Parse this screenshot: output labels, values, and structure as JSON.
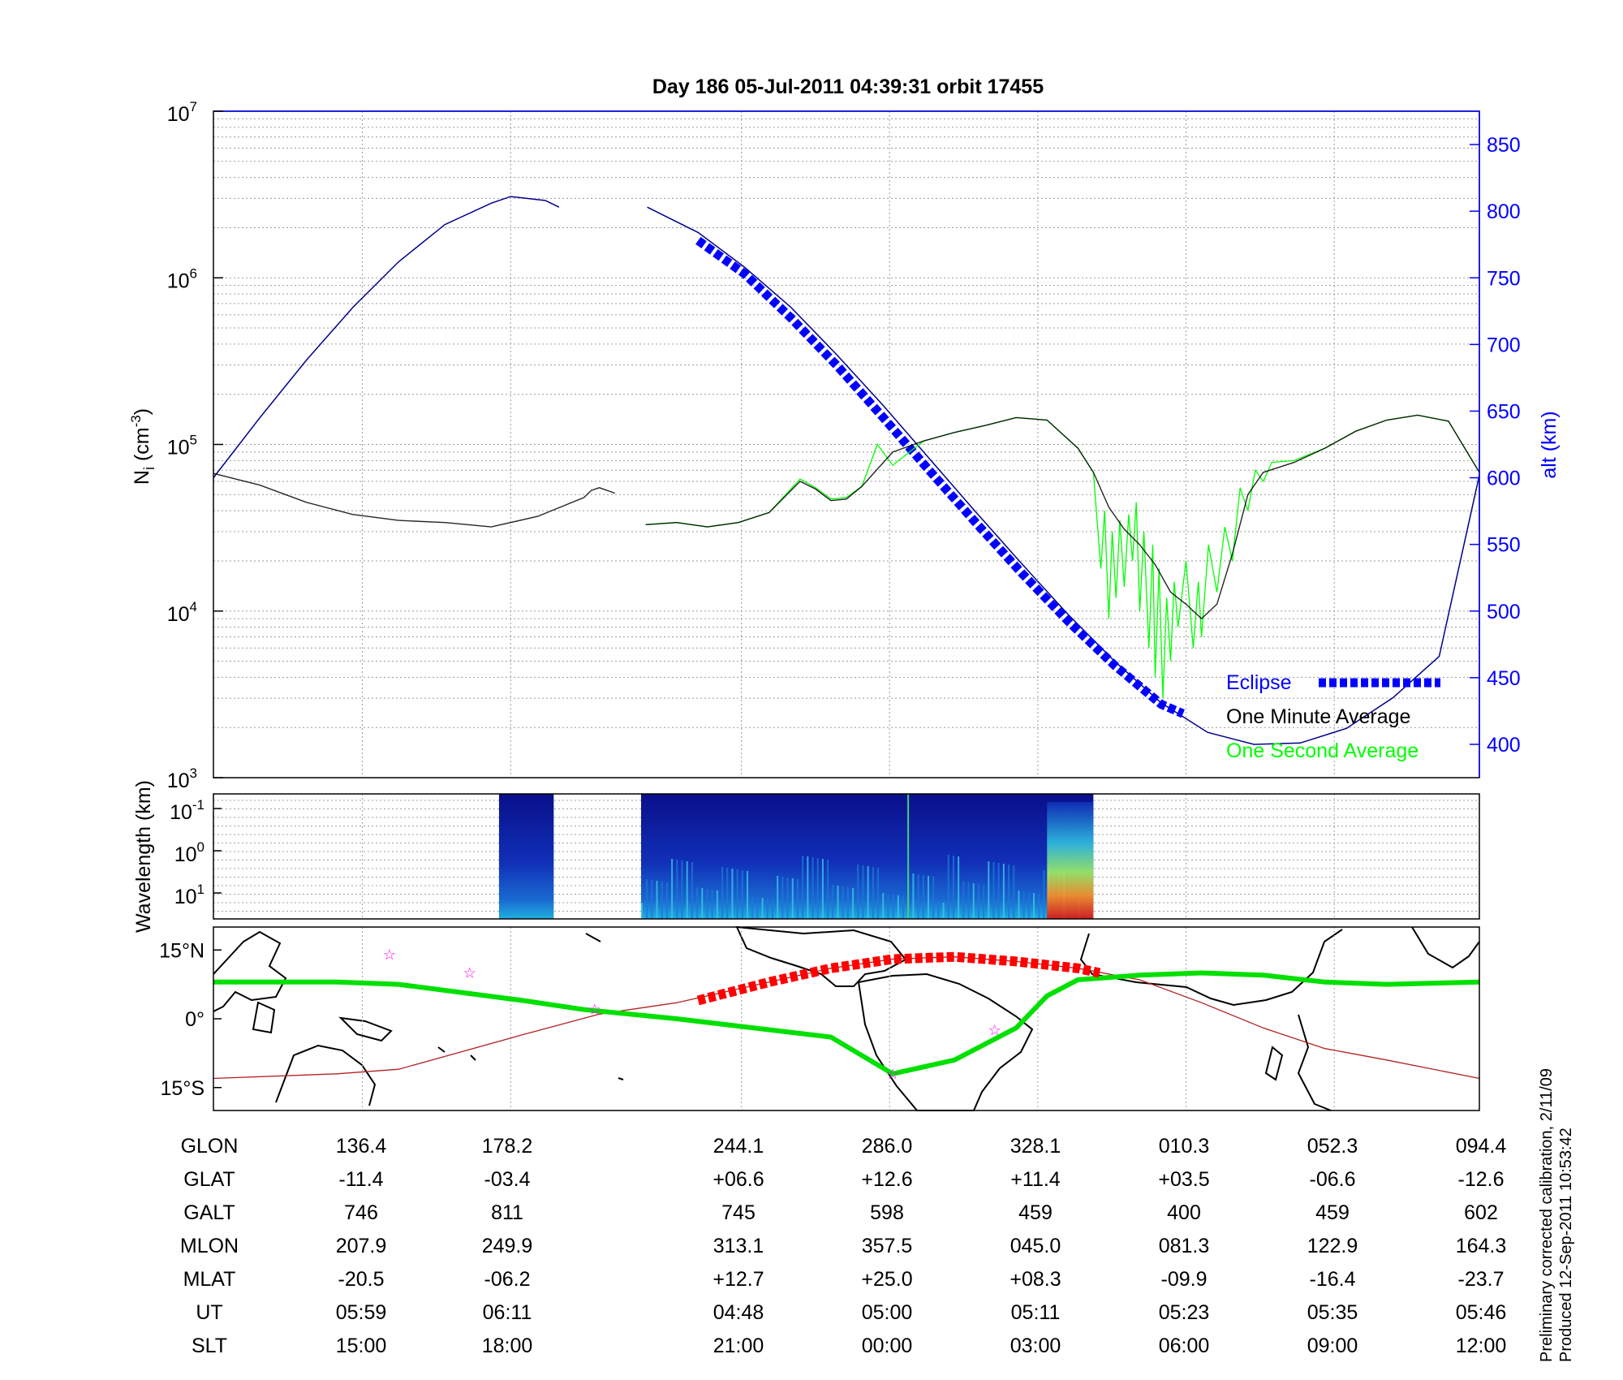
{
  "title": "Day 186  05-Jul-2011 04:39:31   orbit 17455",
  "colors": {
    "eclipse": "#0000ff",
    "one_minute": "#000000",
    "one_second": "#00ff00",
    "altitude": "#00008b",
    "track": "#00e000",
    "eclipse_track": "#ff0000",
    "orbit_path": "#b22222",
    "stars": "#ff00ff",
    "axis_right": "#0000ff"
  },
  "chart_data": [
    {
      "id": "density",
      "type": "line",
      "ylabel": "N_i (cm^-3)",
      "ylabel_main": "N",
      "ylabel_sub": "i",
      "ylabel_unit_open": " (cm",
      "ylabel_unit_sup": "-3",
      "ylabel_unit_close": ")",
      "yscale": "log",
      "ylim": [
        1000,
        10000000
      ],
      "y_ticks": [
        {
          "base": "10",
          "exp": "3",
          "value": 1000
        },
        {
          "base": "10",
          "exp": "4",
          "value": 10000
        },
        {
          "base": "10",
          "exp": "5",
          "value": 100000
        },
        {
          "base": "10",
          "exp": "6",
          "value": 1000000
        },
        {
          "base": "10",
          "exp": "7",
          "value": 10000000
        }
      ],
      "y2label": "alt (km)",
      "y2lim": [
        375,
        875
      ],
      "y2_ticks": [
        "400",
        "450",
        "500",
        "550",
        "600",
        "650",
        "700",
        "750",
        "800",
        "850"
      ],
      "xlim": [
        0,
        1
      ],
      "legend": {
        "placement": "bottom-right",
        "entries": [
          "Eclipse",
          "One Minute Average",
          "One Second Average"
        ]
      },
      "series": [
        {
          "name": "altitude (km)",
          "axis": "right",
          "points": [
            [
              0.0,
              600
            ],
            [
              0.0366,
              645
            ],
            [
              0.0732,
              688
            ],
            [
              0.1103,
              728
            ],
            [
              0.1463,
              762
            ],
            [
              0.1829,
              790
            ],
            [
              0.2195,
              806
            ],
            [
              0.2348,
              811
            ],
            [
              0.2622,
              808
            ],
            [
              0.273,
              803
            ],
            null,
            [
              0.3427,
              803
            ],
            [
              0.3829,
              784
            ],
            [
              0.4195,
              758
            ],
            [
              0.4561,
              728
            ],
            [
              0.4927,
              692
            ],
            [
              0.5293,
              654
            ],
            [
              0.5659,
              614
            ],
            [
              0.6025,
              574
            ],
            [
              0.639,
              535
            ],
            [
              0.6756,
              497
            ],
            [
              0.7122,
              462
            ],
            [
              0.7488,
              431
            ],
            [
              0.7854,
              409
            ],
            [
              0.822,
              400
            ],
            [
              0.8585,
              401
            ],
            [
              0.8951,
              412
            ],
            [
              0.9317,
              435
            ],
            [
              0.9683,
              466
            ],
            [
              1.0,
              602
            ]
          ]
        },
        {
          "name": "Eclipse",
          "axis": "right",
          "points": [
            [
              0.3829,
              778
            ],
            [
              0.4195,
              753
            ],
            [
              0.4561,
              720
            ],
            [
              0.4927,
              684
            ],
            [
              0.5293,
              645
            ],
            [
              0.5659,
              605
            ],
            [
              0.6025,
              566
            ],
            [
              0.639,
              528
            ],
            [
              0.6756,
              492
            ],
            [
              0.7122,
              459
            ],
            [
              0.7488,
              430
            ],
            [
              0.7659,
              423
            ]
          ]
        },
        {
          "name": "One Minute Average",
          "axis": "left",
          "points": [
            [
              0.0,
              67000
            ],
            [
              0.0366,
              57000
            ],
            [
              0.0732,
              45000
            ],
            [
              0.1098,
              38000
            ],
            [
              0.1463,
              35000
            ],
            [
              0.1829,
              34000
            ],
            [
              0.2195,
              32000
            ],
            [
              0.2561,
              37000
            ],
            [
              0.2927,
              48000
            ],
            [
              0.2985,
              53000
            ],
            [
              0.3049,
              55000
            ],
            [
              0.3171,
              51000
            ],
            null,
            [
              0.3415,
              33000
            ],
            [
              0.3659,
              34000
            ],
            [
              0.3902,
              32000
            ],
            [
              0.4146,
              34000
            ],
            [
              0.439,
              39000
            ],
            [
              0.4634,
              60000
            ],
            [
              0.4756,
              54000
            ],
            [
              0.4878,
              46000
            ],
            [
              0.5,
              47000
            ],
            [
              0.5122,
              56000
            ],
            [
              0.5366,
              90000
            ],
            [
              0.561,
              105000
            ],
            [
              0.5854,
              118000
            ],
            [
              0.6098,
              130000
            ],
            [
              0.6341,
              145000
            ],
            [
              0.6585,
              140000
            ],
            [
              0.6829,
              95000
            ],
            [
              0.6951,
              68000
            ],
            [
              0.7073,
              42000
            ],
            [
              0.7195,
              31000
            ],
            [
              0.7317,
              25000
            ],
            [
              0.7439,
              19000
            ],
            [
              0.7561,
              13000
            ],
            [
              0.7683,
              11000
            ],
            [
              0.7805,
              9000
            ],
            [
              0.7927,
              11000
            ],
            [
              0.8049,
              22000
            ],
            [
              0.8171,
              50000
            ],
            [
              0.8293,
              68000
            ],
            [
              0.8537,
              78000
            ],
            [
              0.878,
              95000
            ],
            [
              0.9024,
              120000
            ],
            [
              0.9268,
              140000
            ],
            [
              0.9512,
              150000
            ],
            [
              0.9756,
              138000
            ],
            [
              1.0,
              68000
            ]
          ]
        },
        {
          "name": "One Second Average",
          "axis": "left",
          "points": [
            [
              0.3415,
              33000
            ],
            [
              0.3659,
              34000
            ],
            [
              0.3902,
              32000
            ],
            [
              0.4146,
              34000
            ],
            [
              0.439,
              39000
            ],
            [
              0.4634,
              62000
            ],
            [
              0.4756,
              55000
            ],
            [
              0.4878,
              47000
            ],
            [
              0.5,
              48000
            ],
            [
              0.5122,
              56000
            ],
            [
              0.5244,
              100000
            ],
            [
              0.5366,
              75000
            ],
            [
              0.561,
              105000
            ],
            [
              0.5854,
              118000
            ],
            [
              0.6098,
              130000
            ],
            [
              0.6341,
              145000
            ],
            [
              0.6585,
              140000
            ],
            [
              0.6829,
              95000
            ],
            [
              0.6951,
              68000
            ],
            [
              0.698,
              35000
            ],
            [
              0.701,
              18000
            ],
            [
              0.704,
              40000
            ],
            [
              0.7073,
              9000
            ],
            [
              0.71,
              30000
            ],
            [
              0.713,
              12000
            ],
            [
              0.716,
              35000
            ],
            [
              0.7195,
              14000
            ],
            [
              0.723,
              38000
            ],
            [
              0.726,
              20000
            ],
            [
              0.729,
              45000
            ],
            [
              0.7317,
              10000
            ],
            [
              0.735,
              30000
            ],
            [
              0.739,
              6000
            ],
            [
              0.742,
              25000
            ],
            [
              0.7439,
              4000
            ],
            [
              0.747,
              18000
            ],
            [
              0.75,
              3000
            ],
            [
              0.753,
              12000
            ],
            [
              0.7561,
              5000
            ],
            [
              0.759,
              15000
            ],
            [
              0.762,
              8000
            ],
            [
              0.7683,
              20000
            ],
            [
              0.774,
              6000
            ],
            [
              0.778,
              15000
            ],
            [
              0.7805,
              7000
            ],
            [
              0.786,
              25000
            ],
            [
              0.7927,
              13000
            ],
            [
              0.799,
              32000
            ],
            [
              0.8049,
              20000
            ],
            [
              0.811,
              55000
            ],
            [
              0.8171,
              40000
            ],
            [
              0.823,
              70000
            ],
            [
              0.8293,
              60000
            ],
            [
              0.836,
              78000
            ],
            [
              0.8537,
              80000
            ],
            [
              0.878,
              95000
            ],
            [
              0.9024,
              120000
            ],
            [
              0.9268,
              140000
            ],
            [
              0.9512,
              150000
            ],
            [
              0.9756,
              138000
            ],
            [
              1.0,
              68000
            ]
          ]
        }
      ]
    },
    {
      "id": "spectrogram",
      "type": "heatmap",
      "ylabel": "Wavelength (km)",
      "yscale": "log",
      "y_ticks": [
        {
          "base": "10",
          "exp": "-1"
        },
        {
          "base": "10",
          "exp": "0"
        },
        {
          "base": "10",
          "exp": "1"
        }
      ],
      "data_segments": [
        [
          0.2256,
          0.2688
        ],
        [
          0.3378,
          0.6951
        ]
      ],
      "intense_region": [
        0.6585,
        0.6951
      ]
    },
    {
      "id": "track",
      "type": "line",
      "y_ticks": [
        "15°N",
        "0°",
        "15°S"
      ],
      "ylim": [
        -20,
        20
      ],
      "series": [
        {
          "name": "magnetic equator",
          "points": [
            [
              0.0,
              8
            ],
            [
              0.0976,
              8
            ],
            [
              0.1463,
              7.5
            ],
            [
              0.2439,
              4
            ],
            [
              0.2927,
              2
            ],
            [
              0.3659,
              0
            ],
            [
              0.4878,
              -4
            ],
            [
              0.5366,
              -12
            ],
            [
              0.5854,
              -9
            ],
            [
              0.6341,
              -2
            ],
            [
              0.6585,
              5
            ],
            [
              0.6829,
              8.5
            ],
            [
              0.7317,
              9.5
            ],
            [
              0.7805,
              10
            ],
            [
              0.8293,
              9.5
            ],
            [
              0.878,
              8
            ],
            [
              0.9268,
              7.5
            ],
            [
              1.0,
              8
            ]
          ]
        },
        {
          "name": "orbit ground track",
          "points": [
            [
              0.0,
              -13
            ],
            [
              0.0976,
              -12
            ],
            [
              0.1463,
              -11
            ],
            [
              0.2439,
              -3.5
            ],
            [
              0.3049,
              1
            ],
            [
              0.3659,
              3.5
            ],
            [
              0.4878,
              11
            ],
            [
              0.5366,
              13
            ],
            [
              0.5854,
              13.5
            ],
            [
              0.6341,
              12.5
            ],
            [
              0.6829,
              11
            ],
            [
              0.7317,
              8.5
            ],
            [
              0.7805,
              3.5
            ],
            [
              0.8293,
              -2
            ],
            [
              0.878,
              -6.5
            ],
            [
              0.9268,
              -9
            ],
            [
              1.0,
              -13
            ]
          ]
        },
        {
          "name": "eclipse",
          "points": [
            [
              0.3829,
              4
            ],
            [
              0.439,
              8
            ],
            [
              0.4878,
              11
            ],
            [
              0.5366,
              13
            ],
            [
              0.5854,
              13.5
            ],
            [
              0.6341,
              12.5
            ],
            [
              0.6829,
              11
            ],
            [
              0.7,
              10
            ]
          ]
        }
      ],
      "stars": [
        [
          0.139,
          14
        ],
        [
          0.2024,
          10
        ],
        [
          0.3012,
          2
        ],
        [
          0.5366,
          -12
        ],
        [
          0.6171,
          -2.5
        ]
      ]
    }
  ],
  "ephemeris": {
    "rows": [
      {
        "label": "GLON",
        "values": [
          "136.4",
          "178.2",
          "244.1",
          "286.0",
          "328.1",
          "010.3",
          "052.3",
          "094.4"
        ]
      },
      {
        "label": "GLAT",
        "values": [
          "-11.4",
          "-03.4",
          "+06.6",
          "+12.6",
          "+11.4",
          "+03.5",
          "-06.6",
          "-12.6"
        ]
      },
      {
        "label": "GALT",
        "values": [
          "746",
          "811",
          "745",
          "598",
          "459",
          "400",
          "459",
          "602"
        ]
      },
      {
        "label": "MLON",
        "values": [
          "207.9",
          "249.9",
          "313.1",
          "357.5",
          "045.0",
          "081.3",
          "122.9",
          "164.3"
        ]
      },
      {
        "label": "MLAT",
        "values": [
          "-20.5",
          "-06.2",
          "+12.7",
          "+25.0",
          "+08.3",
          "-09.9",
          "-16.4",
          "-23.7"
        ]
      },
      {
        "label": "UT",
        "values": [
          "05:59",
          "06:11",
          "04:48",
          "05:00",
          "05:11",
          "05:23",
          "05:35",
          "05:46"
        ]
      },
      {
        "label": "SLT",
        "values": [
          "15:00",
          "18:00",
          "21:00",
          "00:00",
          "03:00",
          "06:00",
          "09:00",
          "12:00"
        ]
      }
    ]
  },
  "footnote": {
    "line1": "Preliminary corrected calibration, 2/11/09",
    "line2": "Produced 12-Sep-2011 10:53:42"
  }
}
